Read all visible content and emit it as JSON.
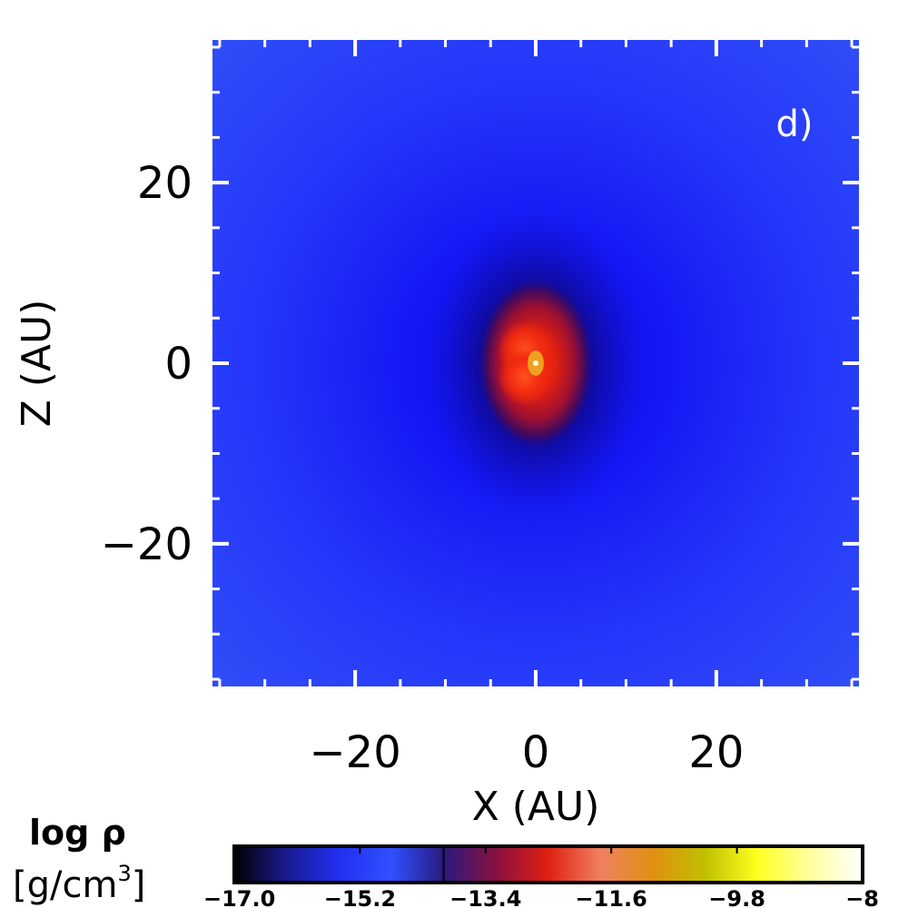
{
  "chart_data": {
    "type": "heatmap",
    "panel_label": "d)",
    "xlabel": "X (AU)",
    "ylabel": "Z (AU)",
    "xlim": [
      -36,
      36
    ],
    "ylim": [
      -36,
      36
    ],
    "x_ticks": [
      {
        "value": -20,
        "label": "−20"
      },
      {
        "value": 0,
        "label": "0"
      },
      {
        "value": 20,
        "label": "20"
      }
    ],
    "y_ticks": [
      {
        "value": 20,
        "label": "20"
      },
      {
        "value": 0,
        "label": "0"
      },
      {
        "value": -20,
        "label": "−20"
      }
    ],
    "minor_tick_step": 5,
    "peak": {
      "x": 0,
      "z": 0,
      "log_rho": -8
    },
    "colorbar": {
      "label_line1": "log ρ",
      "label_line2": "[g/cm",
      "label_sup": "3",
      "label_close": "]",
      "range": [
        -17.0,
        -8
      ],
      "ticks": [
        {
          "value": -17.0,
          "label": "−17.0"
        },
        {
          "value": -15.2,
          "label": "−15.2"
        },
        {
          "value": -13.4,
          "label": "−13.4"
        },
        {
          "value": -11.6,
          "label": "−11.6"
        },
        {
          "value": -9.8,
          "label": "−9.8"
        },
        {
          "value": -8,
          "label": "−8"
        }
      ],
      "colors": [
        "#000000",
        "#1a1a90",
        "#2030f0",
        "#3050ff",
        "#2a1a80",
        "#8a1040",
        "#e02010",
        "#f08060",
        "#e09010",
        "#c0c000",
        "#ffff20",
        "#ffffa0",
        "#ffffff"
      ]
    }
  }
}
